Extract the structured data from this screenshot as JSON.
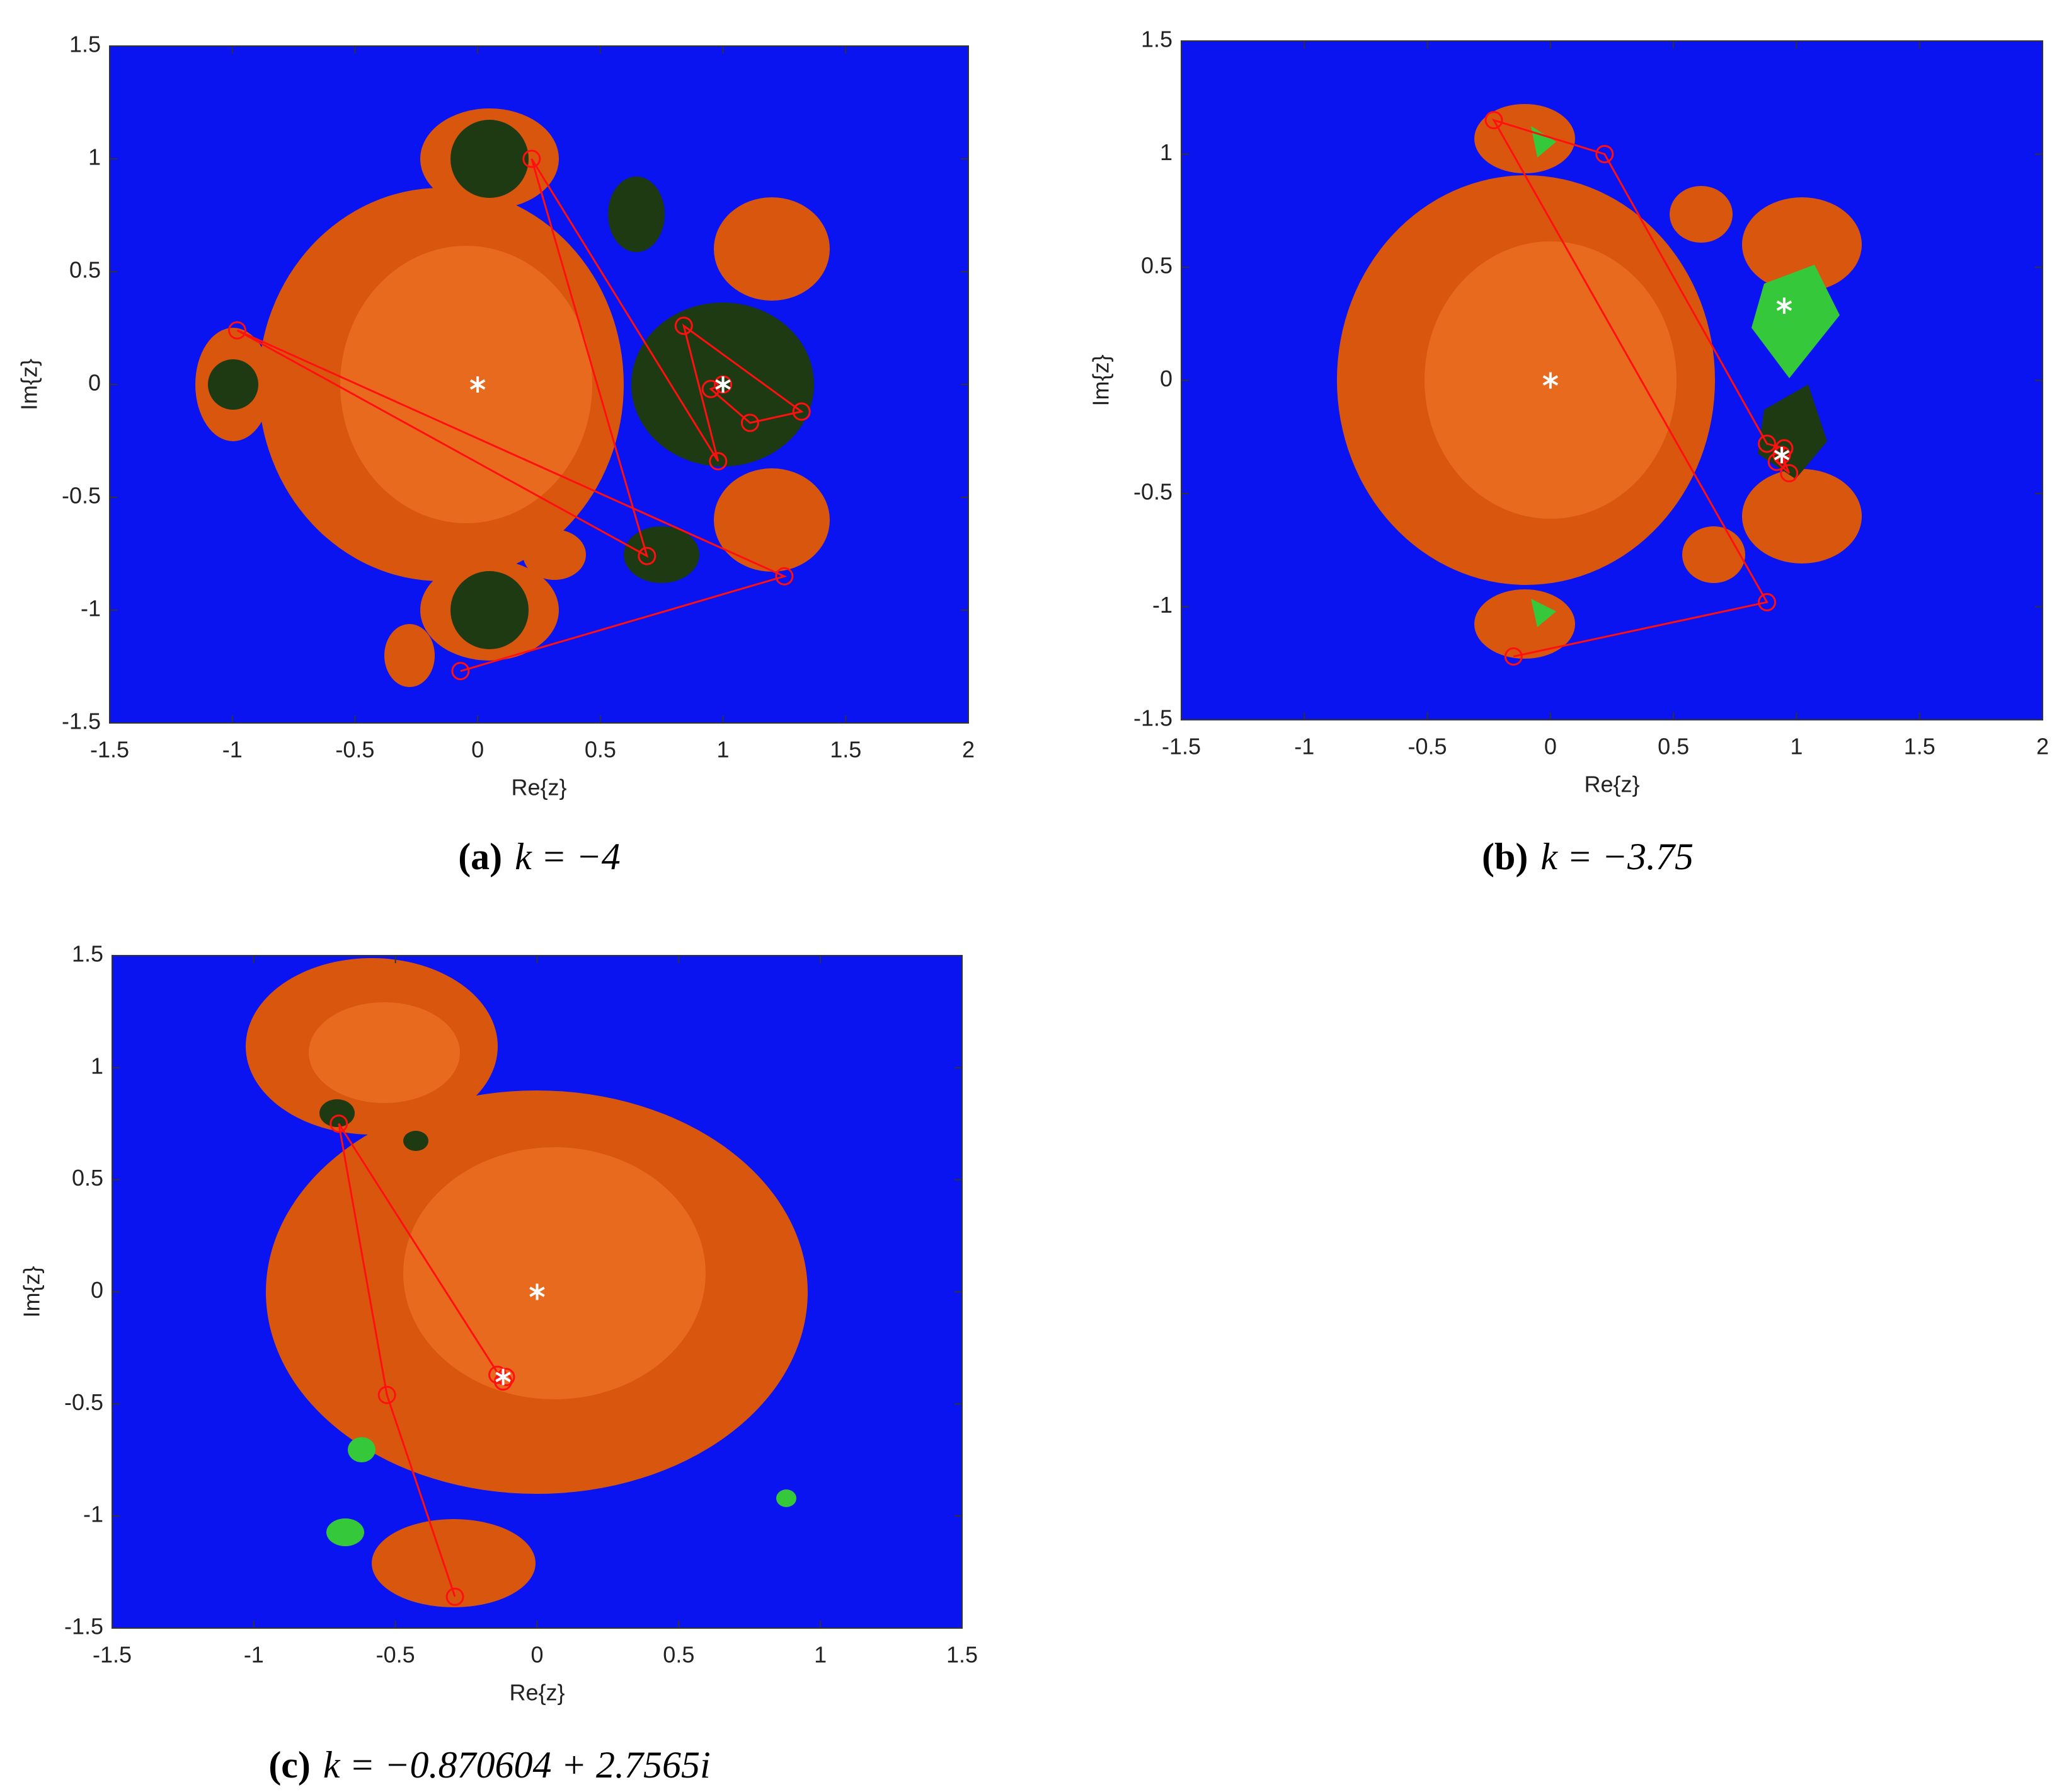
{
  "chart_data": [
    {
      "type": "line",
      "caption_label": "(a)",
      "caption": "k = −4",
      "x_label": "Re{z}",
      "y_label": "Im{z}",
      "xlim": [
        -1.5,
        2
      ],
      "ylim": [
        -1.5,
        1.5
      ],
      "xticks": [
        -1.5,
        -1,
        -0.5,
        0,
        0.5,
        1,
        1.5,
        2
      ],
      "yticks": [
        -1.5,
        -1,
        -0.5,
        0,
        0.5,
        1,
        1.5
      ],
      "series": [
        {
          "color": "#ff1010",
          "marker": "circle",
          "x": [
            -0.07,
            1.25,
            -0.98,
            0.69,
            0.22,
            0.98,
            0.84,
            1.32,
            1.11,
            0.95,
            1.0
          ],
          "values": [
            -1.27,
            -0.85,
            0.24,
            -0.76,
            1.0,
            -0.34,
            0.26,
            -0.12,
            -0.17,
            -0.02,
            0.0
          ]
        },
        {
          "color": "#ffffff",
          "marker": "asterisk",
          "x": [
            0,
            1
          ],
          "values": [
            0,
            0
          ]
        }
      ]
    },
    {
      "type": "line",
      "caption_label": "(b)",
      "caption": "k = −3.75",
      "x_label": "Re{z}",
      "y_label": "Im{z}",
      "xlim": [
        -1.5,
        2
      ],
      "ylim": [
        -1.5,
        1.5
      ],
      "xticks": [
        -1.5,
        -1,
        -0.5,
        0,
        0.5,
        1,
        1.5,
        2
      ],
      "yticks": [
        -1.5,
        -1,
        -0.5,
        0,
        0.5,
        1,
        1.5
      ],
      "series": [
        {
          "color": "#ff1010",
          "marker": "circle",
          "x": [
            -0.15,
            0.88,
            -0.23,
            0.22,
            0.88,
            0.95,
            0.92,
            0.97,
            0.94
          ],
          "values": [
            -1.22,
            -0.98,
            1.15,
            1.0,
            -0.28,
            -0.3,
            -0.36,
            -0.41,
            -0.33
          ]
        },
        {
          "color": "#ffffff",
          "marker": "asterisk",
          "x": [
            0,
            0.95,
            0.94
          ],
          "values": [
            0,
            0.33,
            -0.33
          ]
        }
      ]
    },
    {
      "type": "line",
      "caption_label": "(c)",
      "caption": "k = −0.870604 + 2.7565i",
      "x_label": "Re{z}",
      "y_label": "Im{z}",
      "xlim": [
        -1.5,
        1.5
      ],
      "ylim": [
        -1.5,
        1.5
      ],
      "xticks": [
        -1.5,
        -1,
        -0.5,
        0,
        0.5,
        1,
        1.5
      ],
      "yticks": [
        -1.5,
        -1,
        -0.5,
        0,
        0.5,
        1,
        1.5
      ],
      "series": [
        {
          "color": "#ff1010",
          "marker": "circle",
          "x": [
            -0.29,
            -0.53,
            -0.7,
            -0.12,
            -0.14,
            -0.11
          ],
          "values": [
            -1.36,
            -0.46,
            0.75,
            -0.4,
            -0.37,
            -0.38
          ]
        },
        {
          "color": "#ffffff",
          "marker": "asterisk",
          "x": [
            0,
            -0.12
          ],
          "values": [
            0,
            -0.38
          ]
        }
      ]
    }
  ]
}
